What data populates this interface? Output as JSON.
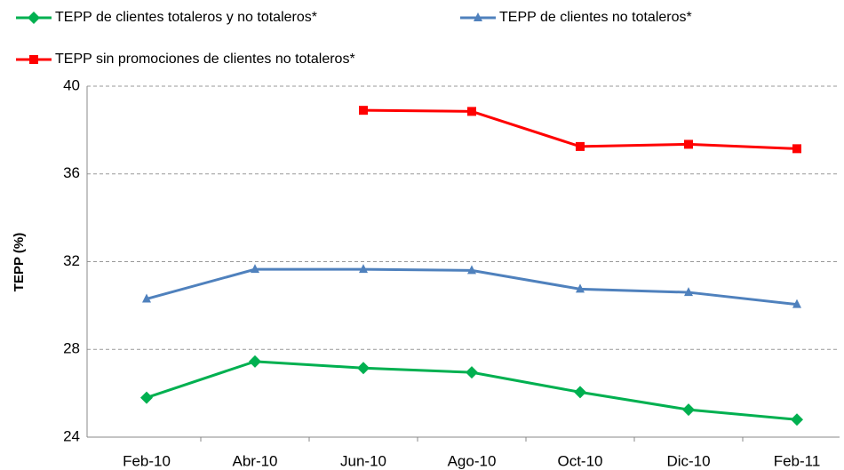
{
  "chart_data": {
    "type": "line",
    "y_label": "TEPP (%)",
    "categories": [
      "Feb-10",
      "Abr-10",
      "Jun-10",
      "Ago-10",
      "Oct-10",
      "Dic-10",
      "Feb-11"
    ],
    "series": [
      {
        "name": "TEPP de clientes totaleros y no totaleros*",
        "color": "#00b050",
        "marker": "diamond",
        "values": [
          25.8,
          27.45,
          27.15,
          26.95,
          26.05,
          25.25,
          24.8
        ]
      },
      {
        "name": "TEPP de clientes no totaleros*",
        "color": "#4f81bd",
        "marker": "triangle",
        "values": [
          30.3,
          31.65,
          31.65,
          31.6,
          30.75,
          30.6,
          30.05
        ]
      },
      {
        "name": "TEPP sin promociones de clientes no totaleros*",
        "color": "#ff0000",
        "marker": "square",
        "values": [
          null,
          null,
          38.9,
          38.85,
          37.25,
          37.35,
          37.15
        ]
      }
    ],
    "ylim": [
      24,
      40
    ],
    "yticks": [
      24,
      28,
      32,
      36,
      40
    ],
    "grid": true
  }
}
